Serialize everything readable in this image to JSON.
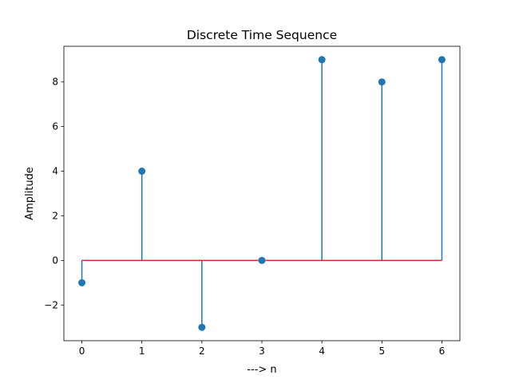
{
  "chart_data": {
    "type": "stem",
    "title": "Discrete Time Sequence",
    "xlabel": "---> n",
    "ylabel": "Amplitude",
    "x": [
      0,
      1,
      2,
      3,
      4,
      5,
      6
    ],
    "values": [
      -1,
      4,
      -3,
      0,
      9,
      8,
      9
    ],
    "xlim": [
      -0.3,
      6.3
    ],
    "ylim": [
      -3.6,
      9.6
    ],
    "xticks": [
      0,
      1,
      2,
      3,
      4,
      5,
      6
    ],
    "yticks": [
      -2,
      0,
      2,
      4,
      6,
      8
    ],
    "ytick_labels": [
      "−2",
      "0",
      "2",
      "4",
      "6",
      "8"
    ],
    "baseline": 0,
    "colors": {
      "stem": "#1f77b4",
      "marker": "#1f77b4",
      "baseline": "#d62728"
    },
    "grid": false,
    "legend": "none"
  }
}
